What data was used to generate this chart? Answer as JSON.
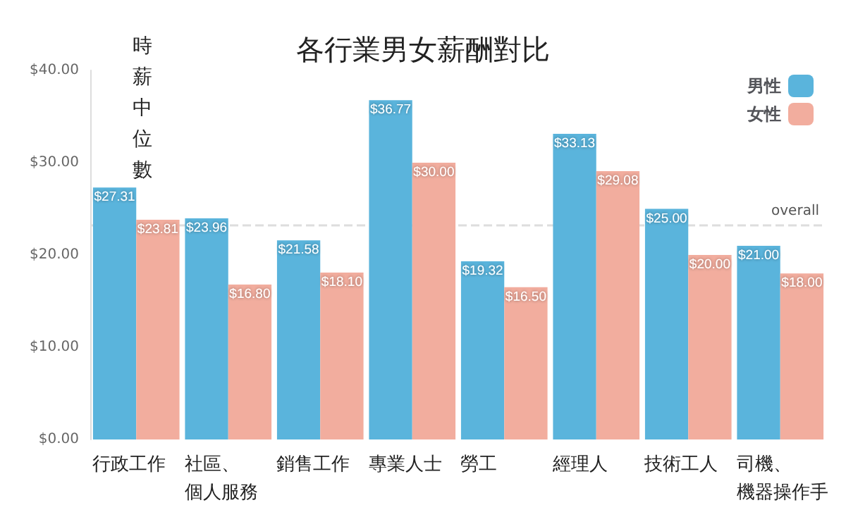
{
  "chart_data": {
    "type": "bar",
    "title": "各行業男女薪酬對比",
    "ylabel": "時薪中位數",
    "categories": [
      "行政工作",
      "社區、個人服務",
      "銷售工作",
      "專業人士",
      "勞工",
      "經理人",
      "技術工人",
      "司機、機器操作手"
    ],
    "series": [
      {
        "name": "男性",
        "color": "#5ab4dc",
        "values": [
          27.31,
          23.96,
          21.58,
          36.77,
          19.32,
          33.13,
          25.0,
          21.0
        ],
        "value_labels": [
          "$27.31",
          "$23.96",
          "$21.58",
          "$36.77",
          "$19.32",
          "$33.13",
          "$25.00",
          "$21.00"
        ]
      },
      {
        "name": "女性",
        "color": "#f2ad9e",
        "values": [
          23.81,
          16.8,
          18.1,
          30.0,
          16.5,
          29.08,
          20.0,
          18.0
        ],
        "value_labels": [
          "$23.81",
          "$16.80",
          "$18.10",
          "$30.00",
          "$16.50",
          "$29.08",
          "$20.00",
          "$18.00"
        ]
      }
    ],
    "ylim": [
      0,
      40
    ],
    "yticks": [
      {
        "value": 0,
        "label": "$0.00"
      },
      {
        "value": 10,
        "label": "$10.00"
      },
      {
        "value": 20,
        "label": "$20.00"
      },
      {
        "value": 30,
        "label": "$30.00"
      },
      {
        "value": 40,
        "label": "$40.00"
      }
    ],
    "ref_lines": [
      {
        "axis": "y",
        "value": 23.2,
        "label": "overall",
        "color": "#dddddd",
        "line_style": "dashed"
      }
    ],
    "grid": false,
    "legend": "top right"
  }
}
